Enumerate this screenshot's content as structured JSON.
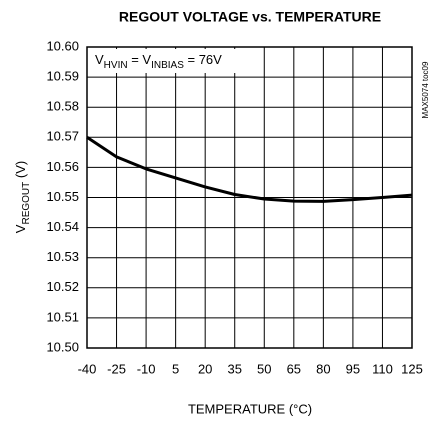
{
  "chart_data": {
    "type": "line",
    "title": "REGOUT VOLTAGE vs. TEMPERATURE",
    "xlabel": "TEMPERATURE (°C)",
    "ylabel": {
      "main": "V",
      "sub": "REGOUT",
      "rest": " (V)"
    },
    "annotation": [
      "V",
      "HVIN",
      " = V",
      "INBIAS",
      " = 76V"
    ],
    "side_note": "MAX5074 toc09",
    "x": [
      -40,
      -25,
      -10,
      5,
      20,
      35,
      50,
      65,
      80,
      95,
      110,
      125
    ],
    "values": [
      10.57,
      10.5635,
      10.5595,
      10.5565,
      10.5535,
      10.551,
      10.5495,
      10.5488,
      10.5487,
      10.5493,
      10.55,
      10.5508
    ],
    "color": "#000000",
    "xlim": [
      -40,
      125
    ],
    "xticks": [
      -40,
      -25,
      -10,
      5,
      20,
      35,
      50,
      65,
      80,
      95,
      110,
      125
    ],
    "ylim": [
      10.5,
      10.6
    ],
    "yticks": [
      {
        "value": 10.5,
        "label": "10.50"
      },
      10.51,
      10.52,
      10.53,
      10.54,
      10.55,
      10.56,
      10.57,
      10.58,
      10.59,
      {
        "value": 10.6,
        "label": "10.60"
      }
    ],
    "grid": true
  }
}
